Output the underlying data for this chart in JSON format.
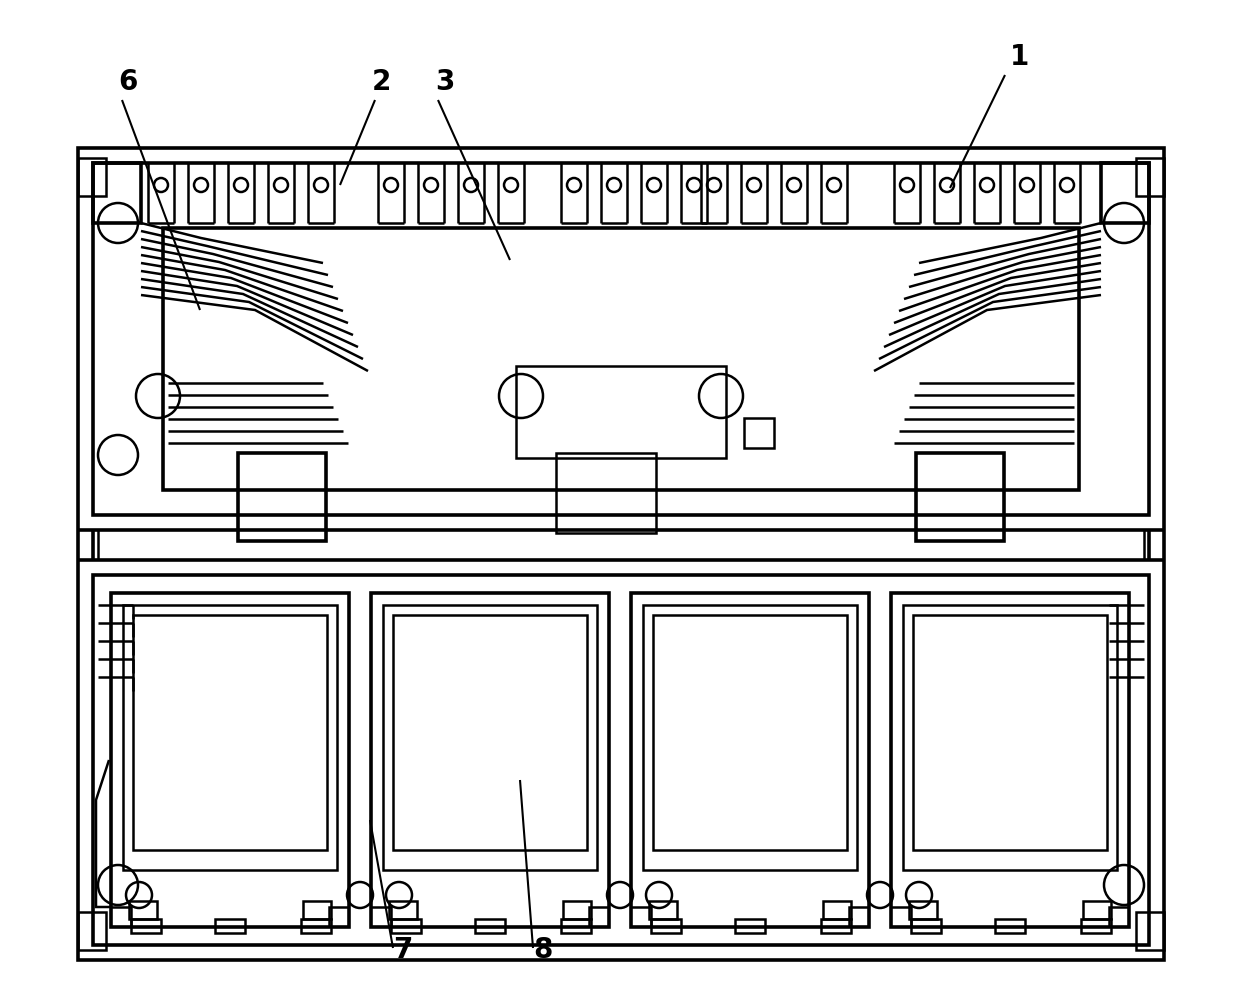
{
  "bg": "#ffffff",
  "lc": "#000000",
  "lw": 1.8,
  "blw": 2.6,
  "fig_w": 12.4,
  "fig_h": 10.07,
  "dpi": 100
}
